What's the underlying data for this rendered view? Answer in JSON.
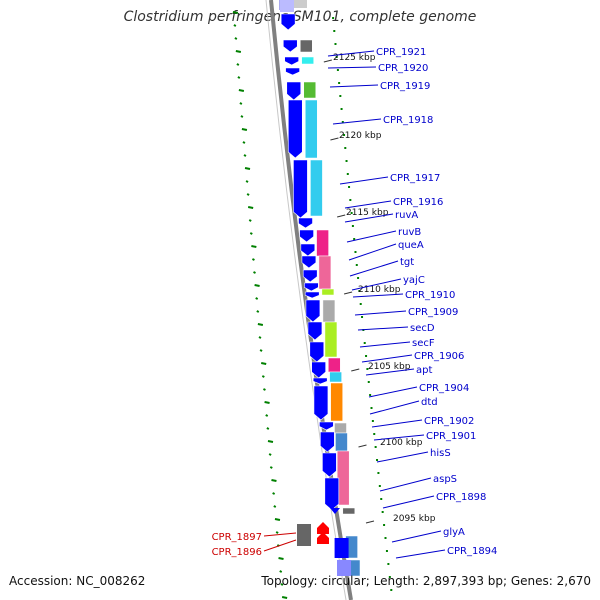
{
  "header": {
    "title": "Clostridium perfringens SM101, complete genome"
  },
  "footer": {
    "accession": "Accession: NC_008262",
    "topology": "Topology: circular; Length: 2,897,393 bp; Genes: 2,670"
  },
  "ticks": [
    "2125 kbp",
    "2120 kbp",
    "2115 kbp",
    "2110 kbp",
    "2105 kbp",
    "2100 kbp",
    "2095 kbp"
  ],
  "gene_labels": [
    {
      "text": "CPR_1921",
      "color": "#0000cc"
    },
    {
      "text": "CPR_1920",
      "color": "#0000cc"
    },
    {
      "text": "CPR_1919",
      "color": "#0000cc"
    },
    {
      "text": "CPR_1918",
      "color": "#0000cc"
    },
    {
      "text": "CPR_1917",
      "color": "#0000cc"
    },
    {
      "text": "CPR_1916",
      "color": "#0000cc"
    },
    {
      "text": "ruvA",
      "color": "#0000cc"
    },
    {
      "text": "ruvB",
      "color": "#0000cc"
    },
    {
      "text": "queA",
      "color": "#0000cc"
    },
    {
      "text": "tgt",
      "color": "#0000cc"
    },
    {
      "text": "yajC",
      "color": "#0000cc"
    },
    {
      "text": "CPR_1910",
      "color": "#0000cc"
    },
    {
      "text": "CPR_1909",
      "color": "#0000cc"
    },
    {
      "text": "secD",
      "color": "#0000cc"
    },
    {
      "text": "secF",
      "color": "#0000cc"
    },
    {
      "text": "CPR_1906",
      "color": "#0000cc"
    },
    {
      "text": "apt",
      "color": "#0000cc"
    },
    {
      "text": "CPR_1904",
      "color": "#0000cc"
    },
    {
      "text": "dtd",
      "color": "#0000cc"
    },
    {
      "text": "CPR_1902",
      "color": "#0000cc"
    },
    {
      "text": "CPR_1901",
      "color": "#0000cc"
    },
    {
      "text": "hisS",
      "color": "#0000cc"
    },
    {
      "text": "aspS",
      "color": "#0000cc"
    },
    {
      "text": "CPR_1898",
      "color": "#0000cc"
    },
    {
      "text": "glyA",
      "color": "#0000cc"
    },
    {
      "text": "CPR_1894",
      "color": "#0000cc"
    },
    {
      "text": "CPR_1897",
      "color": "#cc0000"
    },
    {
      "text": "CPR_1896",
      "color": "#cc0000"
    }
  ],
  "colors": {
    "backbone": "#808080",
    "cds_forward": "#0000ff",
    "cds_reverse": "#ff0000",
    "gc_skew": "#008000",
    "cog_cyan": "#33ccee",
    "cog_green": "#55bb33",
    "cog_pink": "#ee6699",
    "cog_magenta": "#ee2288",
    "cog_grey": "#aaaaaa",
    "cog_lime": "#aaee22",
    "cog_orange": "#ff8800",
    "cog_steel": "#4488cc",
    "label_forward": "#0000cc",
    "label_reverse": "#cc0000"
  }
}
